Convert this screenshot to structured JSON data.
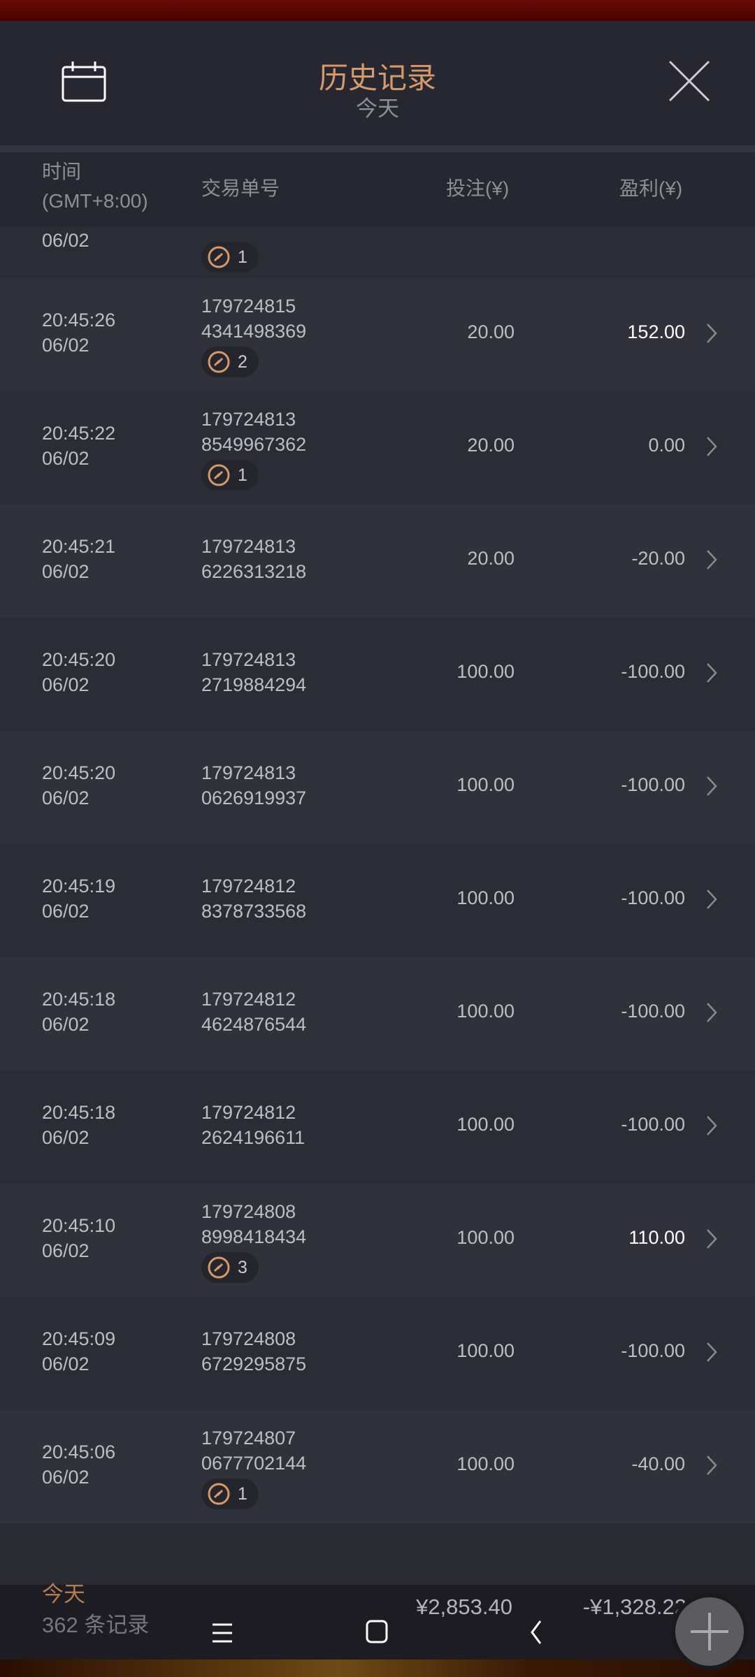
{
  "header": {
    "title": "历史记录",
    "subtitle": "今天",
    "calendar_icon": "calendar-icon",
    "close_icon": "close-icon"
  },
  "columns": {
    "time": "时间",
    "timezone": "(GMT+8:00)",
    "order_id": "交易单号",
    "bet": "投注(¥)",
    "profit": "盈利(¥)"
  },
  "partial_row": {
    "date": "06/02",
    "badge": "1"
  },
  "rows": [
    {
      "time": "20:45:26",
      "date": "06/02",
      "id1": "179724815",
      "id2": "4341498369",
      "badge": "2",
      "bet": "20.00",
      "profit": "152.00",
      "win": true
    },
    {
      "time": "20:45:22",
      "date": "06/02",
      "id1": "179724813",
      "id2": "8549967362",
      "badge": "1",
      "bet": "20.00",
      "profit": "0.00",
      "win": false
    },
    {
      "time": "20:45:21",
      "date": "06/02",
      "id1": "179724813",
      "id2": "6226313218",
      "badge": null,
      "bet": "20.00",
      "profit": "-20.00",
      "win": false
    },
    {
      "time": "20:45:20",
      "date": "06/02",
      "id1": "179724813",
      "id2": "2719884294",
      "badge": null,
      "bet": "100.00",
      "profit": "-100.00",
      "win": false
    },
    {
      "time": "20:45:20",
      "date": "06/02",
      "id1": "179724813",
      "id2": "0626919937",
      "badge": null,
      "bet": "100.00",
      "profit": "-100.00",
      "win": false
    },
    {
      "time": "20:45:19",
      "date": "06/02",
      "id1": "179724812",
      "id2": "8378733568",
      "badge": null,
      "bet": "100.00",
      "profit": "-100.00",
      "win": false
    },
    {
      "time": "20:45:18",
      "date": "06/02",
      "id1": "179724812",
      "id2": "4624876544",
      "badge": null,
      "bet": "100.00",
      "profit": "-100.00",
      "win": false
    },
    {
      "time": "20:45:18",
      "date": "06/02",
      "id1": "179724812",
      "id2": "2624196611",
      "badge": null,
      "bet": "100.00",
      "profit": "-100.00",
      "win": false
    },
    {
      "time": "20:45:10",
      "date": "06/02",
      "id1": "179724808",
      "id2": "8998418434",
      "badge": "3",
      "bet": "100.00",
      "profit": "110.00",
      "win": true
    },
    {
      "time": "20:45:09",
      "date": "06/02",
      "id1": "179724808",
      "id2": "6729295875",
      "badge": null,
      "bet": "100.00",
      "profit": "-100.00",
      "win": false
    },
    {
      "time": "20:45:06",
      "date": "06/02",
      "id1": "179724807",
      "id2": "0677702144",
      "badge": "1",
      "bet": "100.00",
      "profit": "-40.00",
      "win": false
    }
  ],
  "footer": {
    "period": "今天",
    "count": "362 条记录",
    "total_bet": "¥2,853.40",
    "total_profit": "-¥1,328.22"
  },
  "colors": {
    "accent": "#d59a6c",
    "background": "#2a2a33",
    "win": "#ffffff"
  }
}
